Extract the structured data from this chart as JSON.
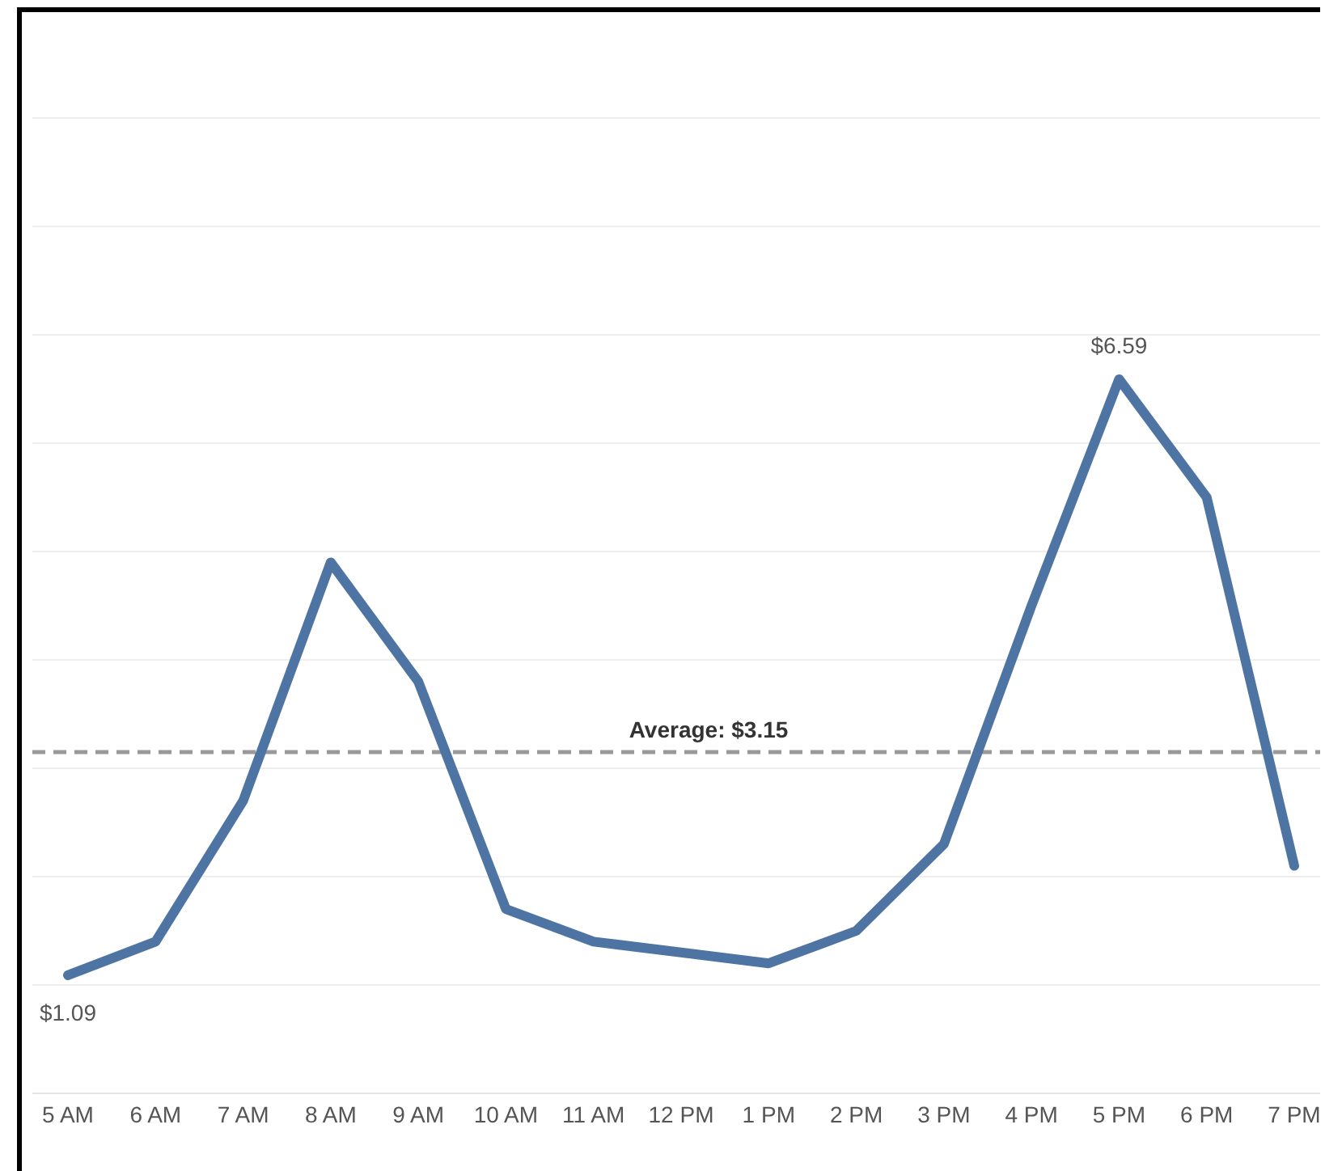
{
  "chart_data": {
    "type": "line",
    "categories": [
      "5 AM",
      "6 AM",
      "7 AM",
      "8 AM",
      "9 AM",
      "10 AM",
      "11 AM",
      "12 PM",
      "1 PM",
      "2 PM",
      "3 PM",
      "4 PM",
      "5 PM",
      "6 PM",
      "7 PM"
    ],
    "series": [
      {
        "color": "#4e74a4",
        "values": [
          1.09,
          1.4,
          2.7,
          4.9,
          3.8,
          1.7,
          1.4,
          1.3,
          1.2,
          1.5,
          2.3,
          4.5,
          6.59,
          5.5,
          2.1
        ],
        "value_labels": [
          "$1.09",
          null,
          null,
          null,
          null,
          null,
          null,
          null,
          null,
          null,
          null,
          null,
          "$6.59",
          null,
          null
        ]
      }
    ],
    "ylim": [
      0,
      10
    ],
    "yticks": [
      {
        "value": 0,
        "label": null
      },
      {
        "value": 1,
        "label": null
      },
      {
        "value": 2,
        "label": null
      },
      {
        "value": 3,
        "label": null
      },
      {
        "value": 4,
        "label": null
      },
      {
        "value": 5,
        "label": null
      },
      {
        "value": 6,
        "label": null
      },
      {
        "value": 7,
        "label": null
      },
      {
        "value": 8,
        "label": null
      },
      {
        "value": 9,
        "label": null
      }
    ],
    "tick_labels": "x",
    "grid": "y",
    "marker": "none",
    "line_style": "solid",
    "ref_lines": [
      {
        "axis": "y",
        "value": 3.15,
        "label": "Average: $3.15",
        "color": "#999999",
        "line_style": "dashed"
      }
    ]
  }
}
